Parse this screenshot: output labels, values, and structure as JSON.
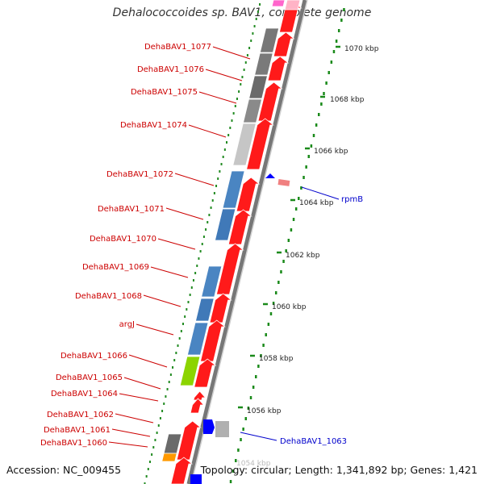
{
  "title": "Dehalococcoides sp. BAV1, complete genome",
  "footer": {
    "accession": "Accession: NC_009455",
    "stats": "Topology: circular; Length: 1,341,892 bp; Genes: 1,421"
  },
  "colors": {
    "red_label": "#cc0000",
    "blue_label": "#0000cc",
    "backbone": "#888888",
    "forward_gene": "#ff0000",
    "tick": "#117711"
  },
  "scale_labels": [
    "1070 kbp",
    "1068 kbp",
    "1066 kbp",
    "1064 kbp",
    "1062 kbp",
    "1060 kbp",
    "1058 kbp",
    "1056 kbp",
    "1054 kbp"
  ],
  "left_labels": [
    "DehaBAV1_1077",
    "DehaBAV1_1076",
    "DehaBAV1_1075",
    "DehaBAV1_1074",
    "DehaBAV1_1072",
    "DehaBAV1_1071",
    "DehaBAV1_1070",
    "DehaBAV1_1069",
    "DehaBAV1_1068",
    "argJ",
    "DehaBAV1_1066",
    "DehaBAV1_1065",
    "DehaBAV1_1064",
    "DehaBAV1_1062",
    "DehaBAV1_1061",
    "DehaBAV1_1060"
  ],
  "right_labels": [
    "rpmB",
    "DehaBAV1_1063"
  ]
}
